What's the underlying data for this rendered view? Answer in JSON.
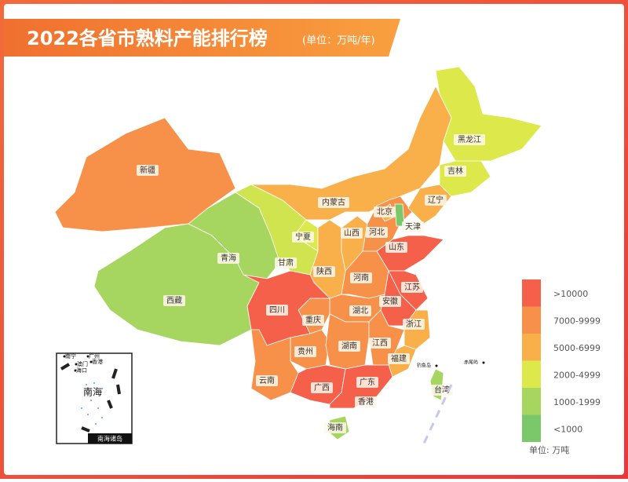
{
  "title": "2022各省市熟料产能排行榜",
  "unit": "(单位：万吨/年)",
  "provinces": [
    {
      "name": "新疆",
      "color": "#f7914a"
    },
    {
      "name": "西藏",
      "color": "#a6d660"
    },
    {
      "name": "青海",
      "color": "#a6d660"
    },
    {
      "name": "甘肃",
      "color": "#cfe44e"
    },
    {
      "name": "内蒙古",
      "color": "#f9b04b"
    },
    {
      "name": "宁夏",
      "color": "#dde84b"
    },
    {
      "name": "陕西",
      "color": "#f9b04b"
    },
    {
      "name": "山西",
      "color": "#f9b04b"
    },
    {
      "name": "河北",
      "color": "#f7914a"
    },
    {
      "name": "北京",
      "color": "#f9b04b"
    },
    {
      "name": "天津",
      "color": "#7bc86b"
    },
    {
      "name": "辽宁",
      "color": "#f9b04b"
    },
    {
      "name": "吉林",
      "color": "#dde84b"
    },
    {
      "name": "黑龙江",
      "color": "#dde84b"
    },
    {
      "name": "山东",
      "color": "#f4604a"
    },
    {
      "name": "河南",
      "color": "#f7914a"
    },
    {
      "name": "江苏",
      "color": "#f4604a"
    },
    {
      "name": "安徽",
      "color": "#f4604a"
    },
    {
      "name": "湖北",
      "color": "#f7914a"
    },
    {
      "name": "浙江",
      "color": "#f9b04b"
    },
    {
      "name": "重庆",
      "color": "#f7914a"
    },
    {
      "name": "四川",
      "color": "#f4604a"
    },
    {
      "name": "贵州",
      "color": "#f7914a"
    },
    {
      "name": "湖南",
      "color": "#f7914a"
    },
    {
      "name": "江西",
      "color": "#f7914a"
    },
    {
      "name": "福建",
      "color": "#f9b04b"
    },
    {
      "name": "云南",
      "color": "#f7914a"
    },
    {
      "name": "广西",
      "color": "#f4604a"
    },
    {
      "name": "广东",
      "color": "#f4604a"
    },
    {
      "name": "海南",
      "color": "#a6d660"
    },
    {
      "name": "台湾",
      "color": "#a6d660"
    }
  ],
  "special_regions": [
    "香港"
  ],
  "legend": {
    "items": [
      {
        "label": ">10000",
        "color": "#f4604a"
      },
      {
        "label": "7000-9999",
        "color": "#f7914a"
      },
      {
        "label": "5000-6999",
        "color": "#f9b04b"
      },
      {
        "label": "2000-4999",
        "color": "#dde84b"
      },
      {
        "label": "1000-1999",
        "color": "#a6d660"
      },
      {
        "label": "<1000",
        "color": "#7bc86b"
      }
    ],
    "unit": "单位: 万吨"
  },
  "inset": {
    "title": "南海诸岛",
    "sea": "南海",
    "cities": [
      "南宁",
      "广州",
      "香港",
      "澳门",
      "海口"
    ]
  },
  "islands": [
    "钓鱼岛",
    "赤尾屿"
  ]
}
